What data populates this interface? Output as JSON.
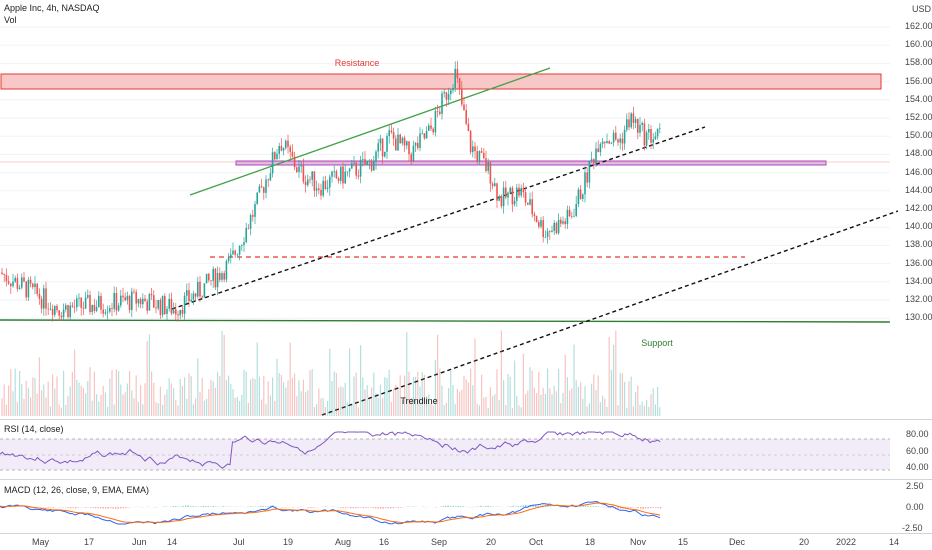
{
  "header": {
    "symbol": "Apple Inc, 4h, NASDAQ",
    "volume_label": "Vol",
    "currency": "USD"
  },
  "price_axis": {
    "ticks": [
      "162.00",
      "160.00",
      "158.00",
      "156.00",
      "154.00",
      "152.00",
      "150.00",
      "148.00",
      "146.00",
      "144.00",
      "142.00",
      "140.00",
      "138.00",
      "136.00",
      "134.00",
      "132.00",
      "130.00"
    ]
  },
  "annotations": {
    "resistance": "Resistance",
    "support": "Support",
    "trendline": "Trendline"
  },
  "rsi": {
    "label": "RSI (14, close)",
    "ticks": [
      "80.00",
      "60.00",
      "40.00"
    ]
  },
  "macd": {
    "label": "MACD (12, 26, close, 9, EMA, EMA)",
    "ticks": [
      "2.50",
      "0.00",
      "-2.50"
    ]
  },
  "time_axis": {
    "ticks": [
      "May",
      "17",
      "Jun",
      "14",
      "Jul",
      "19",
      "Aug",
      "16",
      "Sep",
      "20",
      "Oct",
      "18",
      "Nov",
      "15",
      "Dec",
      "20",
      "2022",
      "14"
    ]
  },
  "colors": {
    "up": "#26a69a",
    "down": "#ef5350",
    "resistance_zone": "#ef9a9a",
    "support_line": "#1b8a3a",
    "rising_line": "#4caf50",
    "pivot_zone": "#ce93d8",
    "rsi_line": "#7e57c2",
    "macd_line": "#2962ff",
    "signal_line": "#ff6d00"
  }
}
